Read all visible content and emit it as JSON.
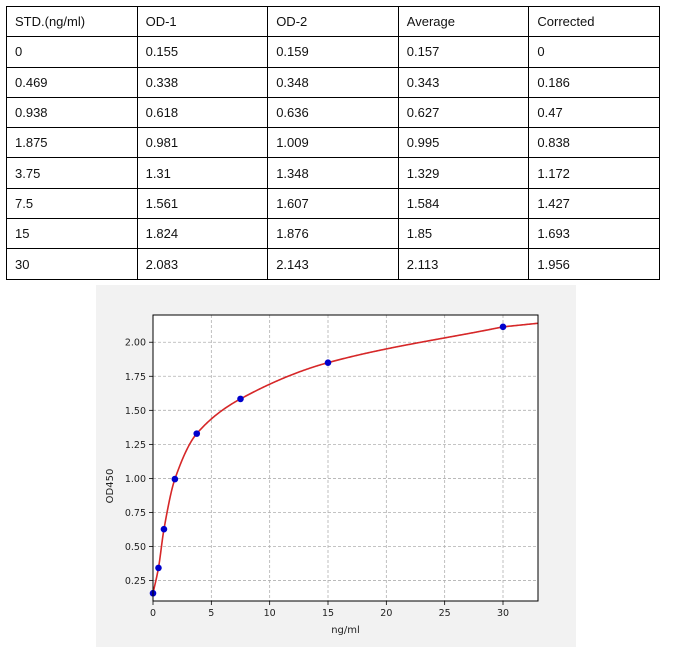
{
  "table": {
    "headers": [
      "STD.(ng/ml)",
      "OD-1",
      "OD-2",
      "Average",
      "Corrected"
    ],
    "rows": [
      [
        "0",
        "0.155",
        "0.159",
        "0.157",
        "0"
      ],
      [
        "0.469",
        "0.338",
        "0.348",
        "0.343",
        "0.186"
      ],
      [
        "0.938",
        "0.618",
        "0.636",
        "0.627",
        "0.47"
      ],
      [
        "1.875",
        "0.981",
        "1.009",
        "0.995",
        "0.838"
      ],
      [
        "3.75",
        "1.31",
        "1.348",
        "1.329",
        "1.172"
      ],
      [
        "7.5",
        "1.561",
        "1.607",
        "1.584",
        "1.427"
      ],
      [
        "15",
        "1.824",
        "1.876",
        "1.85",
        "1.693"
      ],
      [
        "30",
        "2.083",
        "2.143",
        "2.113",
        "1.956"
      ]
    ]
  },
  "chart_data": {
    "type": "scatter",
    "title": "",
    "xlabel": "ng/ml",
    "ylabel": "OD450",
    "xlim": [
      0,
      33
    ],
    "ylim": [
      0.1,
      2.2
    ],
    "xticks": [
      0,
      5,
      10,
      15,
      20,
      25,
      30
    ],
    "yticks": [
      0.25,
      0.5,
      0.75,
      1.0,
      1.25,
      1.5,
      1.75,
      2.0
    ],
    "xtick_labels": [
      "0",
      "5",
      "10",
      "15",
      "20",
      "25",
      "30"
    ],
    "ytick_labels": [
      "0.25",
      "0.50",
      "0.75",
      "1.00",
      "1.25",
      "1.50",
      "1.75",
      "2.00"
    ],
    "grid": true,
    "points": {
      "x": [
        0,
        0.469,
        0.938,
        1.875,
        3.75,
        7.5,
        15,
        30
      ],
      "y": [
        0.157,
        0.343,
        0.627,
        0.995,
        1.329,
        1.584,
        1.85,
        2.113
      ]
    },
    "point_color": "#0000cc",
    "fit_line_color": "#d62728"
  }
}
